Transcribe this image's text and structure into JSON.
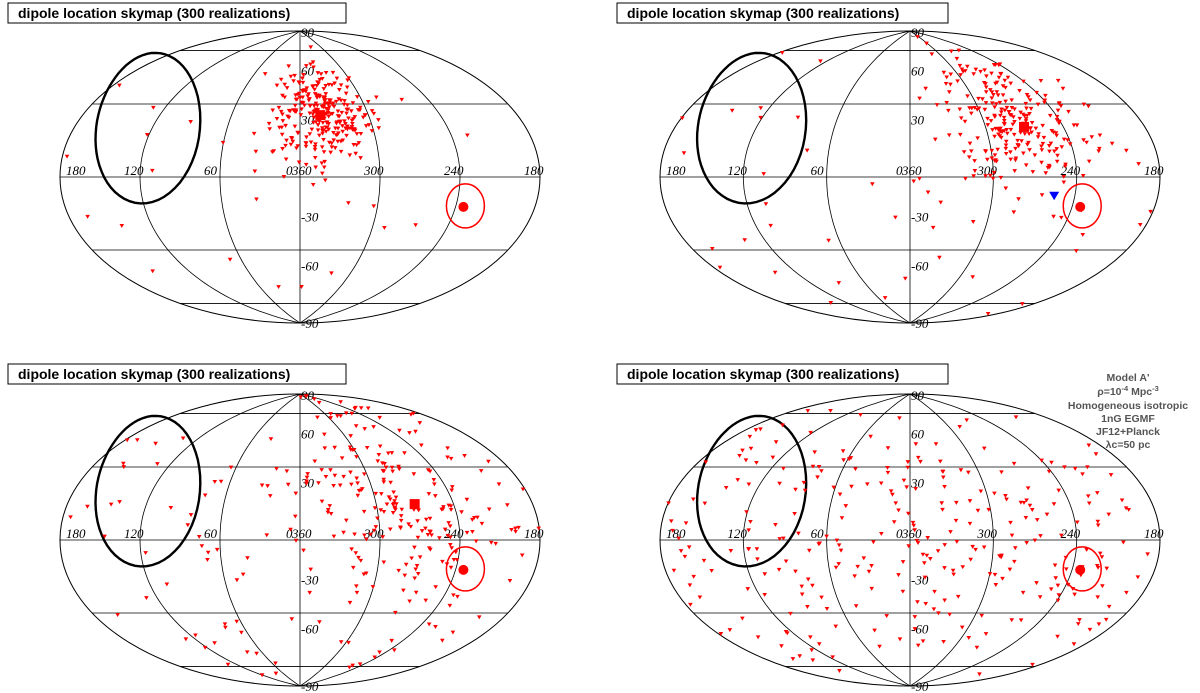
{
  "chart_data": [
    {
      "type": "scatter",
      "projection": "aitoff",
      "title": "dipole location skymap (300 realizations)",
      "lon_labels": [
        "180",
        "120",
        "60",
        "0",
        "360",
        "300",
        "240",
        "180"
      ],
      "lat_labels": [
        "90",
        "60",
        "30",
        "-30",
        "-60",
        "-90"
      ],
      "grid": true,
      "mean_dipole": {
        "marker": "square",
        "color": "#ff0000",
        "lon": 342,
        "lat": 38
      },
      "observed_dipole": {
        "marker": "circle",
        "color": "#ff0000",
        "lon": 234,
        "lat": -15,
        "radius_deg": 12
      },
      "blue_marker": null,
      "source_contour": {
        "color": "#000000",
        "center_lon": 132,
        "center_lat": 28
      },
      "realizations": {
        "marker": "triangle-down",
        "color": "#ff0000",
        "count": 300,
        "cluster": {
          "lon": 340,
          "lat": 38,
          "spread_lon": 22,
          "spread_lat": 14,
          "fraction": 0.92
        }
      }
    },
    {
      "type": "scatter",
      "projection": "aitoff",
      "title": "dipole location skymap (300 realizations)",
      "lon_labels": [
        "180",
        "120",
        "60",
        "0",
        "360",
        "300",
        "240",
        "180"
      ],
      "lat_labels": [
        "90",
        "60",
        "30",
        "-30",
        "-60",
        "-90"
      ],
      "grid": true,
      "mean_dipole": {
        "marker": "square",
        "color": "#ff0000",
        "lon": 270,
        "lat": 28
      },
      "observed_dipole": {
        "marker": "circle",
        "color": "#ff0000",
        "lon": 234,
        "lat": -15,
        "radius_deg": 12
      },
      "blue_marker": {
        "marker": "triangle-down",
        "color": "#0000ff",
        "lon": 255,
        "lat": -10
      },
      "source_contour": {
        "color": "#000000",
        "center_lon": 132,
        "center_lat": 28
      },
      "realizations": {
        "marker": "triangle-down",
        "color": "#ff0000",
        "count": 300,
        "cluster": {
          "lon": 272,
          "lat": 32,
          "spread_lon": 28,
          "spread_lat": 20,
          "fraction": 0.85
        }
      }
    },
    {
      "type": "scatter",
      "projection": "aitoff",
      "title": "dipole location skymap (300 realizations)",
      "lon_labels": [
        "180",
        "120",
        "60",
        "0",
        "360",
        "300",
        "240",
        "180"
      ],
      "lat_labels": [
        "90",
        "60",
        "30",
        "-30",
        "-60",
        "-90"
      ],
      "grid": true,
      "mean_dipole": {
        "marker": "square",
        "color": "#ff0000",
        "lon": 270,
        "lat": 20
      },
      "observed_dipole": {
        "marker": "circle",
        "color": "#ff0000",
        "lon": 234,
        "lat": -15,
        "radius_deg": 12
      },
      "blue_marker": null,
      "source_contour": {
        "color": "#000000",
        "center_lon": 132,
        "center_lat": 28
      },
      "realizations": {
        "marker": "triangle-down",
        "color": "#ff0000",
        "count": 300,
        "cluster": {
          "lon": 275,
          "lat": 22,
          "spread_lon": 40,
          "spread_lat": 30,
          "fraction": 0.6
        }
      }
    },
    {
      "type": "scatter",
      "projection": "aitoff",
      "title": "dipole location skymap (300 realizations)",
      "lon_labels": [
        "180",
        "120",
        "60",
        "0",
        "360",
        "300",
        "240",
        "180"
      ],
      "lat_labels": [
        "90",
        "60",
        "30",
        "-30",
        "-60",
        "-90"
      ],
      "grid": true,
      "mean_dipole": null,
      "observed_dipole": {
        "marker": "circle",
        "color": "#ff0000",
        "lon": 234,
        "lat": -15,
        "radius_deg": 12
      },
      "blue_marker": null,
      "source_contour": {
        "color": "#000000",
        "center_lon": 132,
        "center_lat": 28
      },
      "realizations": {
        "marker": "triangle-down",
        "color": "#ff0000",
        "count": 300,
        "cluster": {
          "lon": 300,
          "lat": 10,
          "spread_lon": 90,
          "spread_lat": 45,
          "fraction": 0.0
        }
      }
    }
  ],
  "annotation": {
    "line1": "Model A'",
    "line2_prefix": "ρ=10",
    "line2_exp": "-4",
    "line2_mid": " Mpc",
    "line2_exp2": "-3",
    "line3": "Homogeneous isotropic",
    "line4": "1nG EGMF",
    "line5": "JF12+Planck",
    "line6": "λc=50 pc"
  }
}
